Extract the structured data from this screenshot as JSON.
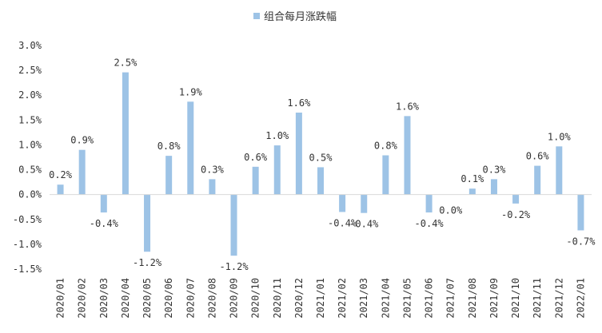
{
  "chart_data": {
    "type": "bar",
    "legend": {
      "label": "组合每月涨跌幅",
      "position": "top-center"
    },
    "categories": [
      "2020/01",
      "2020/02",
      "2020/03",
      "2020/04",
      "2020/05",
      "2020/06",
      "2020/07",
      "2020/08",
      "2020/09",
      "2020/10",
      "2020/11",
      "2020/12",
      "2021/01",
      "2021/02",
      "2021/03",
      "2021/04",
      "2021/05",
      "2021/06",
      "2021/07",
      "2021/08",
      "2021/09",
      "2021/10",
      "2021/11",
      "2021/12",
      "2022/01"
    ],
    "values": [
      0.2,
      0.9,
      -0.36,
      2.46,
      -1.15,
      0.78,
      1.87,
      0.31,
      -1.23,
      0.56,
      0.99,
      1.65,
      0.55,
      -0.35,
      -0.37,
      0.79,
      1.58,
      -0.36,
      0.0,
      0.12,
      0.31,
      -0.18,
      0.58,
      0.97,
      -0.72
    ],
    "data_labels": [
      "0.2%",
      "0.9%",
      "-0.4%",
      "2.5%",
      "-1.2%",
      "0.8%",
      "1.9%",
      "0.3%",
      "-1.2%",
      "0.6%",
      "1.0%",
      "1.6%",
      "0.5%",
      "-0.4%",
      "-0.4%",
      "0.8%",
      "1.6%",
      "-0.4%",
      "0.0%",
      "0.1%",
      "0.3%",
      "-0.2%",
      "0.6%",
      "1.0%",
      "-0.7%"
    ],
    "y_ticks": [
      "3.0%",
      "2.5%",
      "2.0%",
      "1.5%",
      "1.0%",
      "0.5%",
      "0.0%",
      "-0.5%",
      "-1.0%",
      "-1.5%"
    ],
    "ylim": [
      -1.5,
      3.0
    ],
    "grid": false,
    "bar_color": "#9dc3e6",
    "axis_color": "#d9d9d9"
  }
}
